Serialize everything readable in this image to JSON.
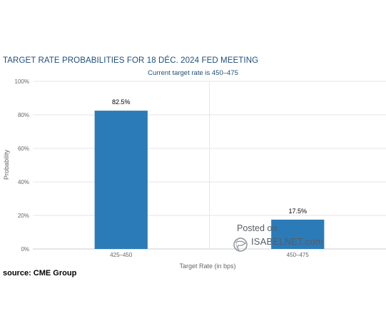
{
  "chart_data": {
    "type": "bar",
    "title": "TARGET RATE PROBABILITIES FOR 18 DÉC. 2024 FED MEETING",
    "subtitle": "Current target rate is 450–475",
    "xlabel": "Target Rate (in bps)",
    "ylabel": "Probability",
    "categories": [
      "425–450",
      "450–475"
    ],
    "values": [
      82.5,
      17.5
    ],
    "data_labels": [
      "82.5%",
      "17.5%"
    ],
    "ylim": [
      0,
      100
    ],
    "yticks": [
      "0%",
      "20%",
      "40%",
      "60%",
      "80%",
      "100%"
    ],
    "ytick_values": [
      0,
      20,
      40,
      60,
      80,
      100
    ],
    "grid": true,
    "bar_color": "#2b7bb9"
  },
  "source": "source: CME Group",
  "watermark": {
    "posted": "Posted on",
    "site": "ISABELNET.com",
    "icon": "globe-icon"
  }
}
